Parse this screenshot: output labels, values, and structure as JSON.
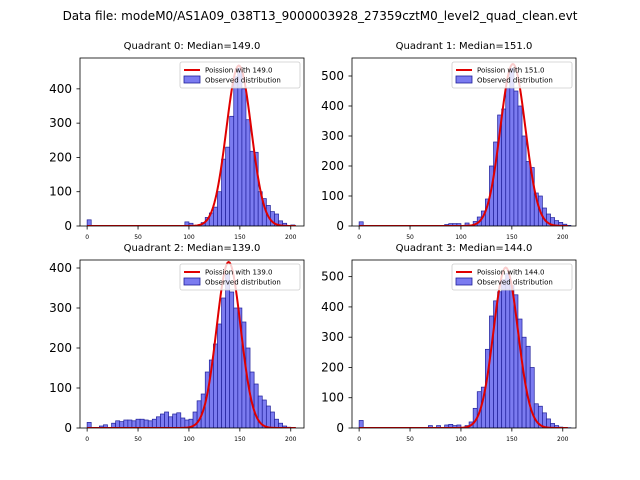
{
  "figure_title": "Data file: modeM0/AS1A09_038T13_9000003928_27359cztM0_level2_quad_clean.evt",
  "colors": {
    "bar_fill": "#7b7bf0",
    "bar_edge": "#20209a",
    "fit_line": "#e00000"
  },
  "chart_data": [
    {
      "type": "bar",
      "title": "Quadrant 0: Median=149.0",
      "legend": [
        "Poission with 149.0",
        "Observed distribution"
      ],
      "legend_position": "top-right",
      "xlim": [
        -7,
        213
      ],
      "ylim": [
        0,
        490
      ],
      "xticks": [
        0,
        50,
        100,
        150,
        200
      ],
      "yticks": [
        0,
        100,
        200,
        300,
        400
      ],
      "bin_width": 4,
      "bins": [
        [
          0,
          18
        ],
        [
          96,
          12
        ],
        [
          100,
          8
        ],
        [
          112,
          10
        ],
        [
          116,
          25
        ],
        [
          120,
          38
        ],
        [
          124,
          55
        ],
        [
          128,
          100
        ],
        [
          132,
          195
        ],
        [
          136,
          230
        ],
        [
          140,
          320
        ],
        [
          144,
          435
        ],
        [
          148,
          460
        ],
        [
          152,
          400
        ],
        [
          156,
          310
        ],
        [
          160,
          218
        ],
        [
          164,
          215
        ],
        [
          168,
          100
        ],
        [
          172,
          80
        ],
        [
          176,
          60
        ],
        [
          180,
          42
        ],
        [
          184,
          35
        ],
        [
          188,
          15
        ],
        [
          192,
          8
        ],
        [
          200,
          3
        ]
      ],
      "fit_mean": 149.0,
      "fit_peak": 468
    },
    {
      "type": "bar",
      "title": "Quadrant 1: Median=151.0",
      "legend": [
        "Poission with 151.0",
        "Observed distribution"
      ],
      "legend_position": "top-right",
      "xlim": [
        -7,
        213
      ],
      "ylim": [
        0,
        560
      ],
      "xticks": [
        0,
        50,
        100,
        150,
        200
      ],
      "yticks": [
        0,
        100,
        200,
        300,
        400,
        500
      ],
      "bin_width": 4,
      "bins": [
        [
          0,
          14
        ],
        [
          84,
          5
        ],
        [
          88,
          8
        ],
        [
          92,
          8
        ],
        [
          96,
          8
        ],
        [
          104,
          10
        ],
        [
          112,
          15
        ],
        [
          116,
          30
        ],
        [
          120,
          50
        ],
        [
          124,
          90
        ],
        [
          128,
          200
        ],
        [
          132,
          280
        ],
        [
          136,
          370
        ],
        [
          140,
          390
        ],
        [
          144,
          460
        ],
        [
          148,
          525
        ],
        [
          152,
          450
        ],
        [
          156,
          400
        ],
        [
          160,
          300
        ],
        [
          164,
          215
        ],
        [
          168,
          195
        ],
        [
          172,
          110
        ],
        [
          176,
          100
        ],
        [
          180,
          60
        ],
        [
          184,
          40
        ],
        [
          188,
          28
        ],
        [
          192,
          18
        ],
        [
          196,
          12
        ],
        [
          200,
          6
        ],
        [
          204,
          2
        ]
      ],
      "fit_mean": 151.0,
      "fit_peak": 540
    },
    {
      "type": "bar",
      "title": "Quadrant 2: Median=139.0",
      "legend": [
        "Poission with 139.0",
        "Observed distribution"
      ],
      "legend_position": "top-right",
      "xlim": [
        -7,
        213
      ],
      "ylim": [
        0,
        420
      ],
      "xticks": [
        0,
        50,
        100,
        150,
        200
      ],
      "yticks": [
        0,
        100,
        200,
        300,
        400
      ],
      "bin_width": 4,
      "bins": [
        [
          0,
          14
        ],
        [
          12,
          5
        ],
        [
          16,
          8
        ],
        [
          24,
          12
        ],
        [
          28,
          18
        ],
        [
          32,
          16
        ],
        [
          36,
          20
        ],
        [
          40,
          20
        ],
        [
          44,
          18
        ],
        [
          48,
          22
        ],
        [
          52,
          22
        ],
        [
          56,
          20
        ],
        [
          60,
          18
        ],
        [
          64,
          22
        ],
        [
          68,
          28
        ],
        [
          72,
          35
        ],
        [
          76,
          40
        ],
        [
          80,
          28
        ],
        [
          84,
          35
        ],
        [
          88,
          38
        ],
        [
          92,
          25
        ],
        [
          96,
          20
        ],
        [
          100,
          22
        ],
        [
          104,
          40
        ],
        [
          108,
          68
        ],
        [
          112,
          85
        ],
        [
          116,
          140
        ],
        [
          120,
          170
        ],
        [
          124,
          210
        ],
        [
          128,
          260
        ],
        [
          132,
          325
        ],
        [
          136,
          385
        ],
        [
          140,
          340
        ],
        [
          144,
          300
        ],
        [
          148,
          300
        ],
        [
          152,
          265
        ],
        [
          156,
          200
        ],
        [
          160,
          140
        ],
        [
          164,
          110
        ],
        [
          168,
          80
        ],
        [
          172,
          70
        ],
        [
          176,
          55
        ],
        [
          180,
          40
        ],
        [
          184,
          22
        ],
        [
          188,
          12
        ],
        [
          192,
          5
        ],
        [
          196,
          2
        ]
      ],
      "fit_mean": 139.0,
      "fit_peak": 415
    },
    {
      "type": "bar",
      "title": "Quadrant 3: Median=144.0",
      "legend": [
        "Poission with 144.0",
        "Observed distribution"
      ],
      "legend_position": "top-right",
      "xlim": [
        -7,
        213
      ],
      "ylim": [
        0,
        555
      ],
      "xticks": [
        0,
        50,
        100,
        150,
        200
      ],
      "yticks": [
        0,
        100,
        200,
        300,
        400,
        500
      ],
      "bin_width": 4,
      "bins": [
        [
          0,
          25
        ],
        [
          68,
          8
        ],
        [
          76,
          8
        ],
        [
          84,
          10
        ],
        [
          88,
          12
        ],
        [
          92,
          8
        ],
        [
          96,
          10
        ],
        [
          104,
          8
        ],
        [
          108,
          20
        ],
        [
          112,
          65
        ],
        [
          116,
          120
        ],
        [
          120,
          135
        ],
        [
          124,
          260
        ],
        [
          128,
          370
        ],
        [
          132,
          420
        ],
        [
          136,
          450
        ],
        [
          140,
          490
        ],
        [
          144,
          510
        ],
        [
          148,
          470
        ],
        [
          152,
          440
        ],
        [
          156,
          360
        ],
        [
          160,
          300
        ],
        [
          164,
          270
        ],
        [
          168,
          200
        ],
        [
          172,
          80
        ],
        [
          176,
          72
        ],
        [
          180,
          50
        ],
        [
          184,
          30
        ],
        [
          188,
          15
        ],
        [
          192,
          8
        ],
        [
          196,
          3
        ],
        [
          200,
          2
        ],
        [
          204,
          1
        ]
      ],
      "fit_mean": 144.0,
      "fit_peak": 530
    }
  ]
}
